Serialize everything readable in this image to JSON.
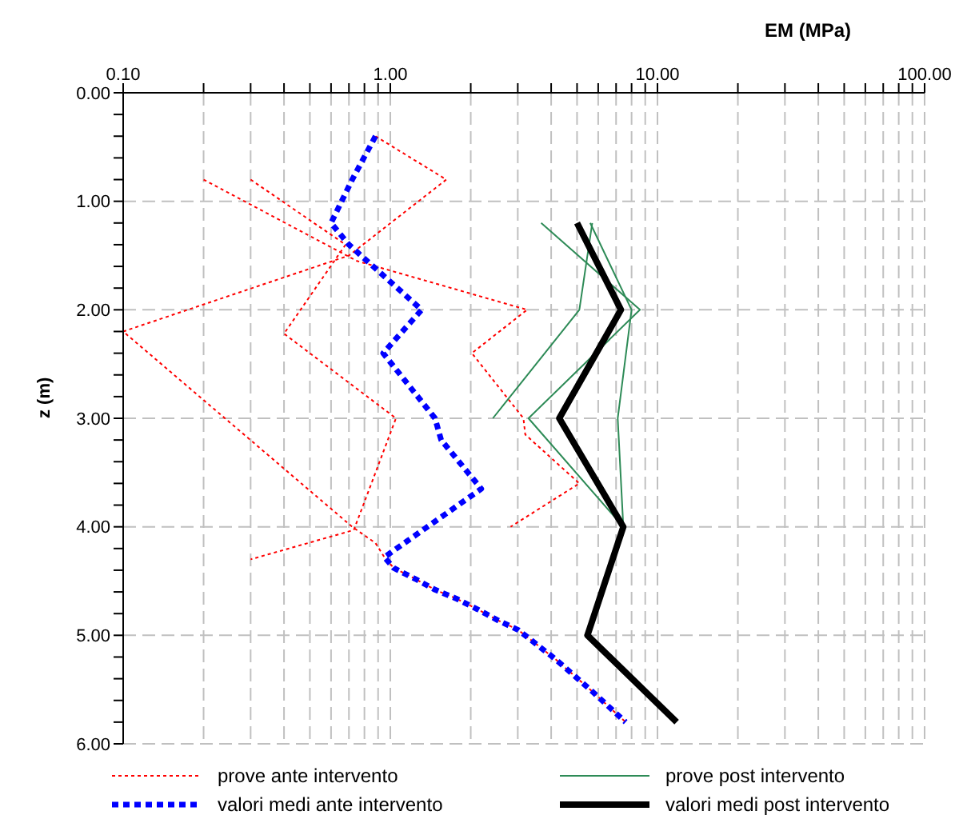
{
  "chart_data": {
    "type": "line",
    "xlabel": "EM  (MPa)",
    "ylabel": "z (m)",
    "log": "x",
    "grid": true,
    "legend": "bottom",
    "xlim": [
      0.1,
      100
    ],
    "ylim": [
      6,
      0
    ],
    "xticks": [
      {
        "value": 0.1,
        "label": "0.10"
      },
      {
        "value": 0.2,
        "label": null
      },
      {
        "value": 0.3,
        "label": null
      },
      {
        "value": 0.4,
        "label": null
      },
      {
        "value": 0.5,
        "label": null
      },
      {
        "value": 0.6,
        "label": null
      },
      {
        "value": 0.7,
        "label": null
      },
      {
        "value": 0.8,
        "label": null
      },
      {
        "value": 0.9,
        "label": null
      },
      {
        "value": 1,
        "label": "1.00"
      },
      {
        "value": 2,
        "label": null
      },
      {
        "value": 3,
        "label": null
      },
      {
        "value": 4,
        "label": null
      },
      {
        "value": 5,
        "label": null
      },
      {
        "value": 6,
        "label": null
      },
      {
        "value": 7,
        "label": null
      },
      {
        "value": 8,
        "label": null
      },
      {
        "value": 9,
        "label": null
      },
      {
        "value": 10,
        "label": "10.00"
      },
      {
        "value": 20,
        "label": null
      },
      {
        "value": 30,
        "label": null
      },
      {
        "value": 40,
        "label": null
      },
      {
        "value": 50,
        "label": null
      },
      {
        "value": 60,
        "label": null
      },
      {
        "value": 70,
        "label": null
      },
      {
        "value": 80,
        "label": null
      },
      {
        "value": 90,
        "label": null
      },
      {
        "value": 100,
        "label": "100.00"
      }
    ],
    "yticks": [
      {
        "value": 0,
        "label": "0.00"
      },
      {
        "value": 0.2,
        "label": null
      },
      {
        "value": 0.4,
        "label": null
      },
      {
        "value": 0.6,
        "label": null
      },
      {
        "value": 0.8,
        "label": null
      },
      {
        "value": 1,
        "label": "1.00"
      },
      {
        "value": 1.2,
        "label": null
      },
      {
        "value": 1.4,
        "label": null
      },
      {
        "value": 1.6,
        "label": null
      },
      {
        "value": 1.8,
        "label": null
      },
      {
        "value": 2,
        "label": "2.00"
      },
      {
        "value": 2.2,
        "label": null
      },
      {
        "value": 2.4,
        "label": null
      },
      {
        "value": 2.6,
        "label": null
      },
      {
        "value": 2.8,
        "label": null
      },
      {
        "value": 3,
        "label": "3.00"
      },
      {
        "value": 3.2,
        "label": null
      },
      {
        "value": 3.4,
        "label": null
      },
      {
        "value": 3.6,
        "label": null
      },
      {
        "value": 3.8,
        "label": null
      },
      {
        "value": 4,
        "label": "4.00"
      },
      {
        "value": 4.2,
        "label": null
      },
      {
        "value": 4.4,
        "label": null
      },
      {
        "value": 4.6,
        "label": null
      },
      {
        "value": 4.8,
        "label": null
      },
      {
        "value": 5,
        "label": "5.00"
      },
      {
        "value": 5.2,
        "label": null
      },
      {
        "value": 5.4,
        "label": null
      },
      {
        "value": 5.6,
        "label": null
      },
      {
        "value": 5.8,
        "label": null
      },
      {
        "value": 6,
        "label": "6.00"
      }
    ],
    "series": [
      {
        "name": "prove ante intervento",
        "color": "#ff0000",
        "line_style": "dotted",
        "x": [
          0.88,
          1.62,
          0.7,
          0.1,
          0.72,
          0.88,
          0.95,
          1.03,
          1.24,
          1.47,
          1.76,
          2.12,
          2.52,
          3.01,
          4.15,
          5.6,
          7.6
        ],
        "values": [
          0.4,
          0.8,
          1.5,
          2.2,
          4.0,
          4.15,
          4.28,
          4.38,
          4.48,
          4.58,
          4.66,
          4.76,
          4.86,
          4.95,
          5.22,
          5.5,
          5.8
        ]
      },
      {
        "color": "#ff0000",
        "line_style": "dotted",
        "x": [
          0.2,
          0.75,
          3.25,
          2.02,
          3.15,
          3.2,
          5.1,
          2.82
        ],
        "values": [
          0.8,
          1.55,
          2.0,
          2.4,
          3.0,
          3.15,
          3.6,
          4.0
        ]
      },
      {
        "color": "#ff0000",
        "line_style": "dotted",
        "x": [
          0.3,
          0.68,
          0.4,
          1.05,
          0.73,
          0.3
        ],
        "values": [
          0.8,
          1.4,
          2.22,
          3.0,
          4.03,
          4.3
        ]
      },
      {
        "name": "valori medi ante intervento",
        "color": "#0000ff",
        "line_style": "dashed",
        "x": [
          0.88,
          0.72,
          0.6,
          0.7,
          1.31,
          0.94,
          1.47,
          1.55,
          2.19,
          0.95,
          1.03,
          1.24,
          1.47,
          1.76,
          2.12,
          2.52,
          3.01,
          4.15,
          5.6,
          7.6
        ],
        "values": [
          0.4,
          0.8,
          1.2,
          1.4,
          2.0,
          2.4,
          3.0,
          3.2,
          3.65,
          4.28,
          4.38,
          4.48,
          4.58,
          4.66,
          4.76,
          4.86,
          4.95,
          5.22,
          5.5,
          5.8
        ]
      },
      {
        "name": "prove post intervento",
        "color": "#2e8b57",
        "line_style": "solid",
        "x": [
          3.67,
          8.6,
          3.29,
          7.45
        ],
        "values": [
          1.2,
          2.0,
          3.0,
          4.0
        ]
      },
      {
        "color": "#2e8b57",
        "line_style": "solid",
        "x": [
          5.7,
          5.1,
          2.42
        ],
        "values": [
          1.2,
          2.0,
          3.0
        ]
      },
      {
        "color": "#2e8b57",
        "line_style": "solid",
        "x": [
          5.6,
          8.0,
          7.1,
          7.45
        ],
        "values": [
          1.2,
          2.0,
          3.0,
          4.0
        ]
      },
      {
        "name": "valori medi post intervento",
        "color": "#000000",
        "line_style": "solid",
        "x": [
          5.0,
          7.3,
          4.29,
          7.45,
          5.47,
          11.8
        ],
        "values": [
          1.2,
          2.0,
          3.0,
          4.0,
          5.0,
          5.8
        ]
      }
    ]
  }
}
